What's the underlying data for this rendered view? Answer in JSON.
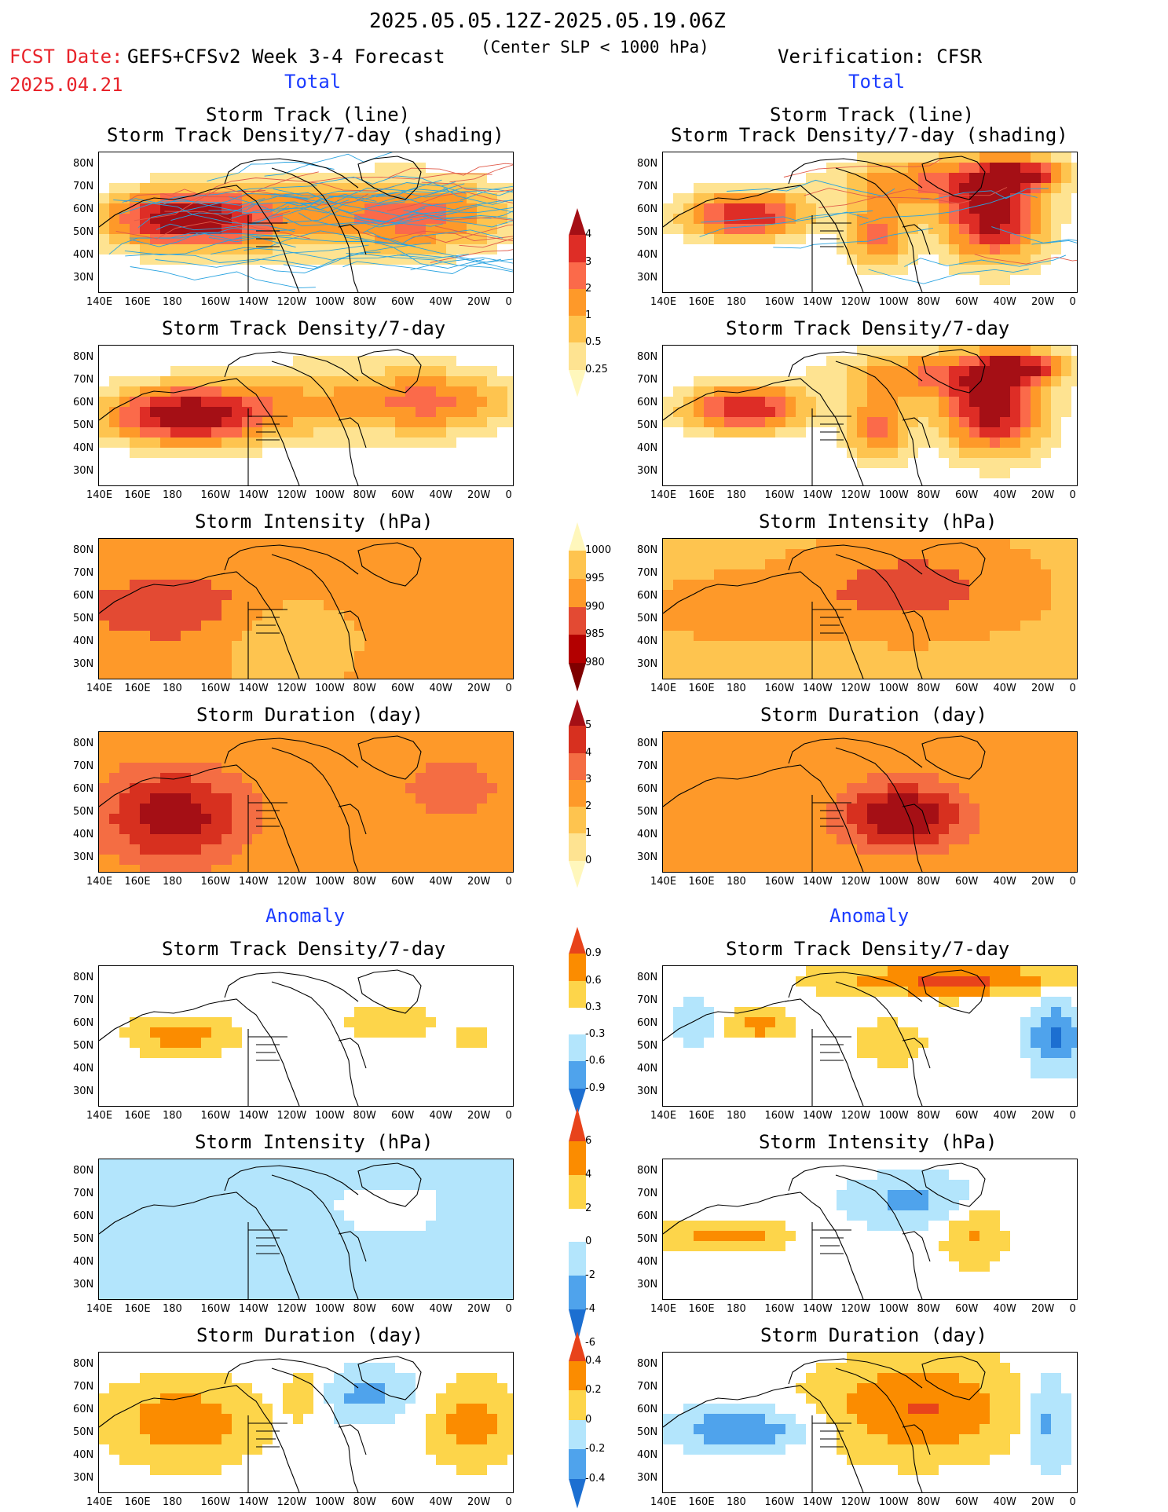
{
  "header": {
    "date_range": "2025.05.05.12Z-2025.05.19.06Z",
    "fcst_label": "FCST Date:",
    "fcst_date": "2025.04.21",
    "model": "GEFS+CFSv2 Week 3-4 Forecast",
    "criterion": "(Center SLP < 1000 hPa)",
    "verification": "Verification: CFSR"
  },
  "sections": {
    "total": "Total",
    "anomaly": "Anomaly"
  },
  "panel_titles": {
    "track_line": "Storm Track (line)",
    "track_density_shading": "Storm Track Density/7-day (shading)",
    "track_density": "Storm Track Density/7-day",
    "intensity": "Storm Intensity (hPa)",
    "duration": "Storm Duration (day)"
  },
  "lat_labels": [
    "80N",
    "70N",
    "60N",
    "50N",
    "40N",
    "30N"
  ],
  "lon_labels": [
    "140E",
    "160E",
    "180",
    "160W",
    "140W",
    "120W",
    "100W",
    "80W",
    "60W",
    "40W",
    "20W",
    "0"
  ],
  "colorbars": {
    "density_total": {
      "labels": [
        "4",
        "3",
        "2",
        "1",
        "0.5",
        "0.25"
      ],
      "colors": [
        "#a50f15",
        "#de2d26",
        "#fb6a4a",
        "#fe9929",
        "#fec44f",
        "#fee391",
        "#fff7bc"
      ]
    },
    "intensity_total": {
      "labels": [
        "1000",
        "995",
        "990",
        "985",
        "980"
      ],
      "colors": [
        "#fff7bc",
        "#fec44f",
        "#fe9929",
        "#e34a33",
        "#b30000",
        "#7f0000"
      ]
    },
    "duration_total": {
      "labels": [
        "5",
        "4",
        "3",
        "2",
        "1",
        "0"
      ],
      "colors": [
        "#a50f15",
        "#d7301f",
        "#f46d43",
        "#fe9929",
        "#fec44f",
        "#fee391",
        "#fff7bc"
      ]
    },
    "density_anom": {
      "labels": [
        "0.9",
        "0.6",
        "0.3",
        "-0.3",
        "-0.6",
        "-0.9"
      ],
      "colors": [
        "#e8431b",
        "#fb8c00",
        "#fdd54a",
        "#ffffff",
        "#b3e5fc",
        "#4fa3ec",
        "#1c6fd1"
      ]
    },
    "intensity_anom": {
      "labels": [
        "6",
        "4",
        "2",
        "0",
        "-2",
        "-4",
        "-6"
      ],
      "colors": [
        "#e8431b",
        "#fb8c00",
        "#fdd54a",
        "#ffffff",
        "#b3e5fc",
        "#4fa3ec",
        "#1c6fd1"
      ]
    },
    "duration_anom": {
      "labels": [
        "0.4",
        "0.2",
        "0",
        "-0.2",
        "-0.4"
      ],
      "colors": [
        "#e8431b",
        "#fb8c00",
        "#fdd54a",
        "#b3e5fc",
        "#4fa3ec",
        "#1c6fd1"
      ]
    }
  },
  "chart_data": [
    {
      "type": "heatmap",
      "panel": "forecast",
      "title": "Storm Track (line) / Storm Track Density/7-day (shading)",
      "note": "storm track lines over density shading",
      "peak_region": "North Pacific near 180, 50N",
      "peak_value": 4
    },
    {
      "type": "heatmap",
      "panel": "verification",
      "title": "Storm Track (line) / Storm Track Density/7-day (shading)",
      "peak_region": "North Atlantic 40W-20W, 50N-70N",
      "peak_value": 4
    },
    {
      "type": "heatmap",
      "panel": "forecast",
      "title": "Storm Track Density/7-day",
      "peak_region": "North Pacific near 180, 50N",
      "peak_value": 4
    },
    {
      "type": "heatmap",
      "panel": "verification",
      "title": "Storm Track Density/7-day",
      "peak_region": "North Atlantic 40W-20W, 50N-60N",
      "peak_value": 4
    },
    {
      "type": "heatmap",
      "panel": "forecast",
      "title": "Storm Intensity (hPa)",
      "range": [
        980,
        1000
      ]
    },
    {
      "type": "heatmap",
      "panel": "verification",
      "title": "Storm Intensity (hPa)",
      "range": [
        980,
        1000
      ]
    },
    {
      "type": "heatmap",
      "panel": "forecast",
      "title": "Storm Duration (day)",
      "range": [
        0,
        5
      ]
    },
    {
      "type": "heatmap",
      "panel": "verification",
      "title": "Storm Duration (day)",
      "range": [
        0,
        5
      ]
    },
    {
      "type": "heatmap",
      "panel": "forecast",
      "title": "Storm Track Density/7-day",
      "section": "Anomaly",
      "range": [
        -0.9,
        0.9
      ]
    },
    {
      "type": "heatmap",
      "panel": "verification",
      "title": "Storm Track Density/7-day",
      "section": "Anomaly",
      "range": [
        -0.9,
        0.9
      ]
    },
    {
      "type": "heatmap",
      "panel": "forecast",
      "title": "Storm Intensity (hPa)",
      "section": "Anomaly",
      "range": [
        -6,
        6
      ]
    },
    {
      "type": "heatmap",
      "panel": "verification",
      "title": "Storm Intensity (hPa)",
      "section": "Anomaly",
      "range": [
        -6,
        6
      ]
    },
    {
      "type": "heatmap",
      "panel": "forecast",
      "title": "Storm Duration (day)",
      "section": "Anomaly",
      "range": [
        -0.4,
        0.4
      ]
    },
    {
      "type": "heatmap",
      "panel": "verification",
      "title": "Storm Duration (day)",
      "section": "Anomaly",
      "range": [
        -0.4,
        0.4
      ]
    }
  ]
}
